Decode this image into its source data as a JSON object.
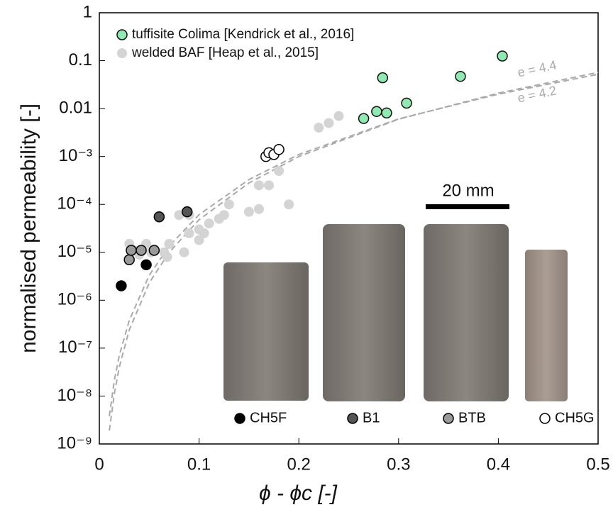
{
  "chart_data": {
    "type": "scatter",
    "x_label": "ϕ - ϕc [-]",
    "y_label": "normalised permeability [-]",
    "xlim": [
      0,
      0.5
    ],
    "xticks": [
      0,
      0.1,
      0.2,
      0.3,
      0.4,
      0.5
    ],
    "ylim": [
      1e-09,
      1
    ],
    "log_y": true,
    "yticks": [
      1,
      0.1,
      0.01,
      {
        "value": 0.001,
        "label": "10⁻³"
      },
      {
        "value": 0.0001,
        "label": "10⁻⁴"
      },
      {
        "value": 1e-05,
        "label": "10⁻⁵"
      },
      {
        "value": 1e-06,
        "label": "10⁻⁶"
      },
      {
        "value": 1e-07,
        "label": "10⁻⁷"
      },
      {
        "value": 1e-08,
        "label": "10⁻⁸"
      },
      {
        "value": 1e-09,
        "label": "10⁻⁹"
      }
    ],
    "series": [
      {
        "name": "tuffisite Colima [Kendrick et al., 2016]",
        "color": "#92e8b2",
        "edgecolor": "#111",
        "x": [
          0.265,
          0.278,
          0.284,
          0.288,
          0.308,
          0.362,
          0.404
        ],
        "values": [
          0.0062,
          0.0087,
          0.044,
          0.0081,
          0.013,
          0.047,
          0.125
        ]
      },
      {
        "name": "welded BAF [Heap et al., 2015]",
        "color": "#d4d4d4",
        "edgecolor": "none",
        "x": [
          0.03,
          0.035,
          0.04,
          0.047,
          0.052,
          0.065,
          0.07,
          0.068,
          0.08,
          0.085,
          0.09,
          0.1,
          0.105,
          0.11,
          0.12,
          0.125,
          0.13,
          0.15,
          0.16,
          0.16,
          0.17,
          0.18,
          0.19,
          0.22,
          0.23,
          0.24,
          0.09,
          0.1
        ],
        "values": [
          1.5e-05,
          1.1e-05,
          9e-06,
          1.5e-05,
          1e-05,
          1e-05,
          1.5e-05,
          8e-06,
          6e-05,
          1e-05,
          2.5e-05,
          1.8e-05,
          2.5e-05,
          4e-05,
          5e-05,
          6e-05,
          0.0001,
          7e-05,
          8e-05,
          0.00025,
          0.00025,
          0.0005,
          0.0001,
          0.004,
          0.005,
          0.007,
          6e-05,
          3e-05
        ]
      },
      {
        "name": "CH5F",
        "color": "#000000",
        "edgecolor": "#000",
        "x": [
          0.022,
          0.047
        ],
        "values": [
          2e-06,
          5.5e-06
        ]
      },
      {
        "name": "B1",
        "color": "#555555",
        "edgecolor": "#000",
        "x": [
          0.06,
          0.088
        ],
        "values": [
          5.5e-05,
          7e-05
        ]
      },
      {
        "name": "BTB",
        "color": "#9a9a9a",
        "edgecolor": "#000",
        "x": [
          0.03,
          0.032,
          0.042,
          0.055
        ],
        "values": [
          7e-06,
          1.1e-05,
          1.1e-05,
          1.1e-05
        ]
      },
      {
        "name": "CH5G",
        "color": "#ffffff",
        "edgecolor": "#000",
        "x": [
          0.167,
          0.17,
          0.175,
          0.18
        ],
        "values": [
          0.001,
          0.0012,
          0.0011,
          0.0014
        ]
      }
    ],
    "curves": [
      {
        "label": "e = 4.4",
        "color": "#aaaaaa",
        "x": [
          0.01,
          0.015,
          0.02,
          0.03,
          0.05,
          0.07,
          0.1,
          0.15,
          0.2,
          0.3,
          0.4,
          0.5
        ],
        "values": [
          1.9e-09,
          1.1e-08,
          4e-08,
          2.4e-07,
          2.3e-06,
          1e-05,
          4.8e-05,
          0.00028,
          0.001,
          0.006,
          0.021,
          0.057
        ]
      },
      {
        "label": "e = 4.2",
        "color": "#aaaaaa",
        "x": [
          0.01,
          0.015,
          0.02,
          0.03,
          0.05,
          0.07,
          0.1,
          0.15,
          0.2,
          0.3,
          0.4,
          0.5
        ],
        "values": [
          3.8e-09,
          2.1e-08,
          7e-08,
          3.8e-07,
          3.3e-06,
          1.35e-05,
          6.1e-05,
          0.00033,
          0.0011,
          0.0061,
          0.02,
          0.052
        ]
      }
    ],
    "scale_bar_label": "20 mm"
  }
}
